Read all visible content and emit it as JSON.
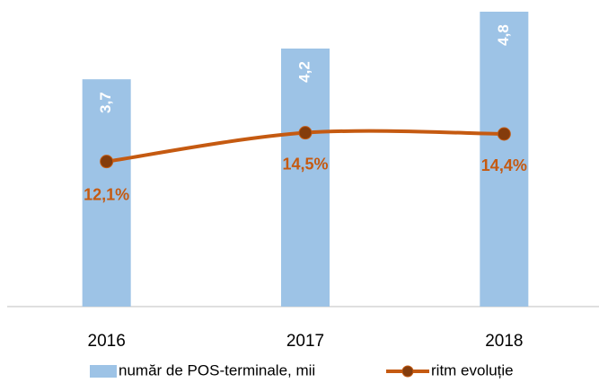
{
  "chart_data": {
    "type": "bar_line",
    "categories": [
      "2016",
      "2017",
      "2018"
    ],
    "series": [
      {
        "name": "număr de POS-terminale, mii",
        "type": "bar",
        "color": "#9dc3e6",
        "values": [
          3.7,
          4.2,
          4.8
        ],
        "value_labels": [
          "3,7",
          "4,2",
          "4,8"
        ]
      },
      {
        "name": "ritm evoluție",
        "type": "line",
        "axis": "y2",
        "color": "#c55a11",
        "marker_color": "#843c0c",
        "values": [
          12.1,
          14.5,
          14.4
        ],
        "value_labels": [
          "12,1%",
          "14,5%",
          "14,4%"
        ]
      }
    ],
    "ylim": [
      0,
      4.8
    ],
    "y2lim": [
      0,
      24.6
    ]
  }
}
